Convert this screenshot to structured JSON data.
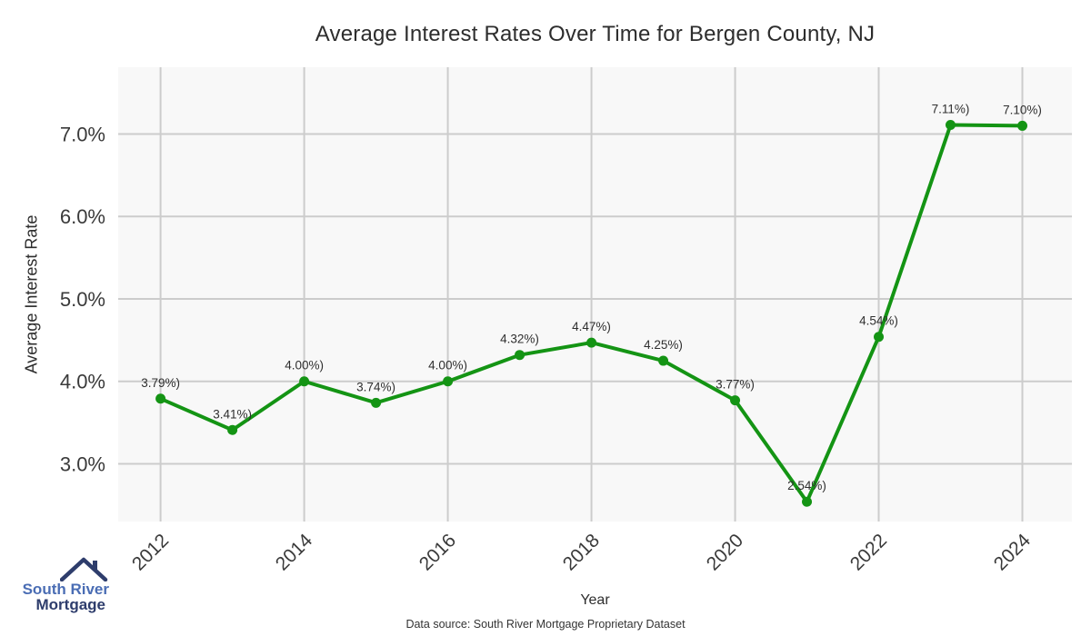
{
  "title": "Average Interest Rates Over Time for Bergen County, NJ",
  "chart_data": {
    "type": "line",
    "x": [
      2012,
      2013,
      2014,
      2015,
      2016,
      2017,
      2018,
      2019,
      2020,
      2021,
      2022,
      2023,
      2024
    ],
    "values": [
      3.79,
      3.41,
      4.0,
      3.74,
      4.0,
      4.32,
      4.47,
      4.25,
      3.77,
      2.54,
      4.54,
      7.11,
      7.1
    ],
    "point_labels": [
      "3.79%)",
      "3.41%)",
      "4.00%)",
      "3.74%)",
      "4.00%)",
      "4.32%)",
      "4.47%)",
      "4.25%)",
      "3.77%)",
      "2.54%)",
      "4.54%)",
      "7.11%)",
      "7.10%)"
    ],
    "title": "Average Interest Rates Over Time for Bergen County, NJ",
    "xlabel": "Year",
    "ylabel": "Average Interest Rate",
    "x_ticks": [
      2012,
      2014,
      2016,
      2018,
      2020,
      2022,
      2024
    ],
    "y_ticks": [
      3.0,
      4.0,
      5.0,
      6.0,
      7.0
    ],
    "y_tick_labels": [
      "3.0%",
      "4.0%",
      "5.0%",
      "6.0%",
      "7.0%"
    ],
    "xlim": [
      2011.41,
      2024.69
    ],
    "ylim": [
      2.3,
      7.81
    ],
    "grid": true,
    "legend": "none",
    "line_color": "#149414",
    "marker_color": "#149414",
    "grid_color": "#cccccc",
    "panel_color": "#f8f8f8",
    "label_color": "#2f2f2f",
    "tick_color": "#3a3a3a"
  },
  "footer": {
    "source": "Data source: South River Mortgage Proprietary Dataset"
  },
  "logo": {
    "line1": "South River",
    "line2": "Mortgage",
    "color1": "#4a6db4",
    "color2": "#2e3d6c",
    "roof_color": "#2e3d6c"
  }
}
